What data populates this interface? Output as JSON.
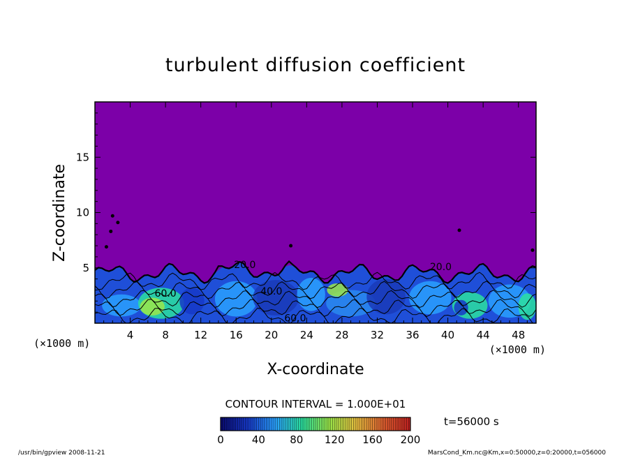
{
  "chart_data": {
    "type": "heatmap",
    "title": "turbulent diffusion coefficient",
    "xlabel": "X-coordinate",
    "ylabel": "Z-coordinate",
    "x_unit": "(×1000 m)",
    "y_unit": "(×1000 m)",
    "xlim": [
      0,
      50
    ],
    "ylim": [
      0,
      20
    ],
    "x_ticks": [
      4,
      8,
      12,
      16,
      20,
      24,
      28,
      32,
      36,
      40,
      44,
      48
    ],
    "y_ticks": [
      5,
      10,
      15
    ],
    "contour_interval": "CONTOUR INTERVAL = 1.000E+01",
    "time_label": "t=56000 s",
    "colorbar": {
      "min": 0,
      "max": 200,
      "tick_values": [
        0,
        40,
        80,
        120,
        160,
        200
      ],
      "colors": [
        "#0a0a6e",
        "#1638c8",
        "#2aa0ff",
        "#2be0a0",
        "#9be84a",
        "#e8c040",
        "#e06030",
        "#c02020"
      ]
    },
    "contour_labels": [
      "60.0",
      "20.0",
      "20.0",
      "40.0",
      "60.0"
    ],
    "background_value_color": "#7c00a8",
    "boundary_layer_top_km": 5
  },
  "footer": {
    "left": "/usr/bin/gpview  2008-11-21",
    "right": "MarsCond_Km.nc@Km,x=0:50000,z=0:20000,t=056000"
  }
}
